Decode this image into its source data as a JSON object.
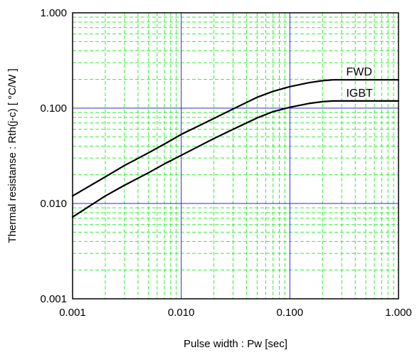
{
  "chart_data": {
    "type": "line",
    "title": "",
    "xlabel": "Pulse width : Pw [sec]",
    "ylabel": "Thermal resistanse  :  Rth(j-c)  [ °C/W ]",
    "x_scale": "log",
    "y_scale": "log",
    "xlim": [
      0.001,
      1.0
    ],
    "ylim": [
      0.001,
      1.0
    ],
    "grid": true,
    "x_ticks": [
      "0.001",
      "0.010",
      "0.100",
      "1.000"
    ],
    "y_ticks": [
      "0.001",
      "0.010",
      "0.100",
      "1.000"
    ],
    "colors": {
      "major_grid": "#2b2bd6",
      "minor_grid": "#33ee33",
      "curve": "#000000"
    },
    "series": [
      {
        "name": "FWD",
        "x": [
          0.001,
          0.002,
          0.003,
          0.005,
          0.007,
          0.01,
          0.02,
          0.03,
          0.05,
          0.07,
          0.1,
          0.15,
          0.2,
          0.25,
          0.3,
          0.5,
          0.7,
          1.0
        ],
        "y": [
          0.012,
          0.019,
          0.025,
          0.034,
          0.042,
          0.053,
          0.078,
          0.098,
          0.13,
          0.15,
          0.168,
          0.185,
          0.194,
          0.198,
          0.198,
          0.198,
          0.198,
          0.198
        ]
      },
      {
        "name": "IGBT",
        "x": [
          0.001,
          0.002,
          0.003,
          0.005,
          0.007,
          0.01,
          0.02,
          0.03,
          0.05,
          0.07,
          0.1,
          0.15,
          0.2,
          0.25,
          0.3,
          0.5,
          0.7,
          1.0
        ],
        "y": [
          0.0072,
          0.012,
          0.0155,
          0.021,
          0.026,
          0.032,
          0.048,
          0.06,
          0.079,
          0.092,
          0.102,
          0.112,
          0.117,
          0.119,
          0.119,
          0.119,
          0.119,
          0.119
        ]
      }
    ]
  }
}
